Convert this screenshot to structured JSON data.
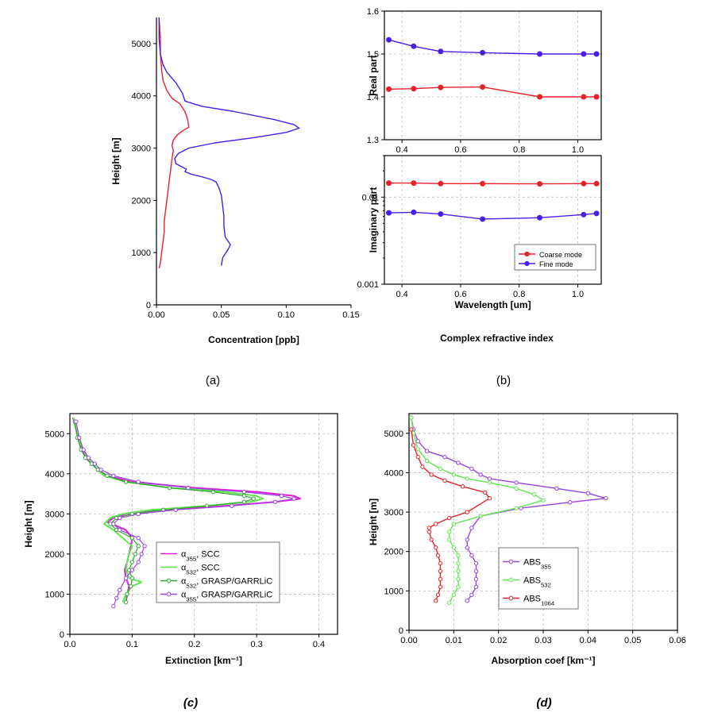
{
  "captions": {
    "a": "(a)",
    "b": "(b)",
    "c": "(c)",
    "d": "(d)"
  },
  "chart_data": [
    {
      "id": "a",
      "type": "line",
      "title": "",
      "xlabel": "Concentration [ppb]",
      "ylabel": "Height [m]",
      "xlim": [
        0,
        0.15
      ],
      "ylim": [
        0,
        5500
      ],
      "xticks": [
        "0.00",
        "0.05",
        "0.10",
        "0.15"
      ],
      "yticks": [
        "0",
        "1000",
        "2000",
        "3000",
        "4000",
        "5000"
      ],
      "grid": false,
      "series": [
        {
          "color": "#e8202a",
          "x": [
            0.002,
            0.003,
            0.004,
            0.005,
            0.006,
            0.006,
            0.007,
            0.008,
            0.009,
            0.01,
            0.011,
            0.012,
            0.013,
            0.012,
            0.013,
            0.016,
            0.02,
            0.025,
            0.024,
            0.022,
            0.018,
            0.012,
            0.008,
            0.005,
            0.004,
            0.003,
            0.003,
            0.002
          ],
          "y": [
            700,
            800,
            1000,
            1200,
            1400,
            1600,
            1800,
            2000,
            2200,
            2400,
            2600,
            2800,
            2950,
            3050,
            3150,
            3250,
            3330,
            3400,
            3550,
            3700,
            3850,
            3950,
            4100,
            4300,
            4500,
            4800,
            5100,
            5500
          ]
        },
        {
          "color": "#4a1ee6",
          "x": [
            0.05,
            0.051,
            0.055,
            0.057,
            0.053,
            0.052,
            0.052,
            0.051,
            0.05,
            0.048,
            0.046,
            0.042,
            0.035,
            0.027,
            0.022,
            0.023,
            0.019,
            0.015,
            0.014,
            0.017,
            0.025,
            0.045,
            0.075,
            0.1,
            0.11,
            0.106,
            0.09,
            0.06,
            0.035,
            0.022,
            0.02,
            0.015,
            0.008,
            0.005,
            0.003,
            0.002,
            0.002
          ],
          "y": [
            750,
            900,
            1050,
            1150,
            1300,
            1500,
            1700,
            1900,
            2100,
            2250,
            2350,
            2400,
            2450,
            2500,
            2550,
            2600,
            2650,
            2700,
            2800,
            2900,
            3000,
            3100,
            3200,
            3300,
            3380,
            3450,
            3550,
            3700,
            3800,
            3900,
            4050,
            4250,
            4450,
            4600,
            4800,
            5100,
            5500
          ]
        }
      ]
    },
    {
      "id": "b_real",
      "type": "line",
      "title": "",
      "xlabel": "",
      "ylabel": "Real part",
      "xlim": [
        0.34,
        1.08
      ],
      "ylim": [
        1.3,
        1.6
      ],
      "xticks": [
        "0.4",
        "0.6",
        "0.8",
        "1.0"
      ],
      "yticks": [
        "1.3",
        "1.4",
        "1.5",
        "1.6"
      ],
      "grid": true,
      "series": [
        {
          "color": "#e8202a",
          "x": [
            0.355,
            0.44,
            0.532,
            0.675,
            0.87,
            1.02,
            1.064
          ],
          "y": [
            1.418,
            1.419,
            1.422,
            1.423,
            1.4,
            1.4,
            1.4
          ]
        },
        {
          "color": "#4a1ee6",
          "x": [
            0.355,
            0.44,
            0.532,
            0.675,
            0.87,
            1.02,
            1.064
          ],
          "y": [
            1.533,
            1.518,
            1.506,
            1.503,
            1.5,
            1.5,
            1.5
          ]
        }
      ]
    },
    {
      "id": "b_imag",
      "type": "line",
      "title": "Complex refractive index",
      "xlabel": "Wavelength [um]",
      "ylabel": "Imaginary part",
      "xlim": [
        0.34,
        1.08
      ],
      "ylim": [
        0.001,
        0.03
      ],
      "yscale": "log",
      "xticks": [
        "0.4",
        "0.6",
        "0.8",
        "1.0"
      ],
      "yticks": [
        "0.001",
        "0.01"
      ],
      "grid": true,
      "legend": "bottom-right",
      "series": [
        {
          "name": "Coarse mode",
          "color": "#e8202a",
          "x": [
            0.355,
            0.44,
            0.532,
            0.675,
            0.87,
            1.02,
            1.064
          ],
          "y": [
            0.0145,
            0.0145,
            0.0143,
            0.0143,
            0.0142,
            0.0143,
            0.0143
          ]
        },
        {
          "name": "Fine mode",
          "color": "#4a1ee6",
          "x": [
            0.355,
            0.44,
            0.532,
            0.675,
            0.87,
            1.02,
            1.064
          ],
          "y": [
            0.0066,
            0.0067,
            0.0064,
            0.0056,
            0.0058,
            0.0063,
            0.0065
          ]
        }
      ]
    },
    {
      "id": "c",
      "type": "line",
      "title": "",
      "xlabel": "Extinction [km⁻¹]",
      "ylabel": "Height [m]",
      "xlim": [
        0,
        0.43
      ],
      "ylim": [
        0,
        5500
      ],
      "xticks": [
        "0.0",
        "0.1",
        "0.2",
        "0.3",
        "0.4"
      ],
      "yticks": [
        "0",
        "1000",
        "2000",
        "3000",
        "4000",
        "5000"
      ],
      "grid": true,
      "legend": "bottom-right",
      "series": [
        {
          "name": "α355, SCC",
          "color": "#e21be0",
          "width": 2,
          "markers": false,
          "x": [
            0.09,
            0.092,
            0.095,
            0.09,
            0.088,
            0.092,
            0.095,
            0.098,
            0.1,
            0.09,
            0.075,
            0.06,
            0.07,
            0.09,
            0.15,
            0.25,
            0.33,
            0.37,
            0.36,
            0.3,
            0.2,
            0.1,
            0.06,
            0.045,
            0.035,
            0.025,
            0.02,
            0.015,
            0.01,
            0.005
          ],
          "y": [
            800,
            1000,
            1200,
            1400,
            1600,
            1800,
            2000,
            2200,
            2400,
            2600,
            2700,
            2800,
            2900,
            3000,
            3100,
            3200,
            3300,
            3380,
            3450,
            3550,
            3650,
            3800,
            3950,
            4100,
            4250,
            4400,
            4600,
            4800,
            5100,
            5400
          ]
        },
        {
          "name": "α532, SCC",
          "color": "#5ee84d",
          "width": 2,
          "markers": false,
          "x": [
            0.085,
            0.09,
            0.1,
            0.115,
            0.095,
            0.09,
            0.092,
            0.095,
            0.1,
            0.085,
            0.07,
            0.055,
            0.065,
            0.085,
            0.13,
            0.22,
            0.29,
            0.31,
            0.3,
            0.25,
            0.16,
            0.09,
            0.055,
            0.045,
            0.035,
            0.028,
            0.022,
            0.016,
            0.01,
            0.006
          ],
          "y": [
            800,
            1000,
            1200,
            1300,
            1400,
            1600,
            1800,
            2000,
            2200,
            2400,
            2600,
            2750,
            2900,
            3000,
            3100,
            3200,
            3300,
            3380,
            3450,
            3550,
            3650,
            3800,
            3950,
            4100,
            4250,
            4400,
            4600,
            4800,
            5100,
            5400
          ]
        },
        {
          "name": "α532, GRASP/GARRLiC",
          "color": "#2ea82e",
          "width": 1.2,
          "markers": true,
          "x": [
            0.09,
            0.092,
            0.098,
            0.1,
            0.095,
            0.1,
            0.105,
            0.11,
            0.1,
            0.075,
            0.065,
            0.075,
            0.1,
            0.15,
            0.22,
            0.28,
            0.295,
            0.28,
            0.23,
            0.16,
            0.09,
            0.06,
            0.045,
            0.035,
            0.025,
            0.018,
            0.012,
            0.008
          ],
          "y": [
            800,
            1000,
            1200,
            1400,
            1600,
            1800,
            2000,
            2200,
            2400,
            2600,
            2750,
            2900,
            3000,
            3100,
            3200,
            3300,
            3380,
            3450,
            3550,
            3650,
            3800,
            3950,
            4100,
            4250,
            4400,
            4600,
            4900,
            5300
          ]
        },
        {
          "name": "α355, GRASP/GARRLiC",
          "color": "#9a43e0",
          "width": 1.2,
          "markers": true,
          "x": [
            0.07,
            0.075,
            0.08,
            0.09,
            0.1,
            0.11,
            0.115,
            0.12,
            0.11,
            0.08,
            0.07,
            0.08,
            0.11,
            0.17,
            0.26,
            0.33,
            0.36,
            0.34,
            0.28,
            0.19,
            0.11,
            0.07,
            0.05,
            0.04,
            0.03,
            0.022,
            0.015,
            0.01
          ],
          "y": [
            700,
            900,
            1100,
            1400,
            1600,
            1800,
            2000,
            2200,
            2400,
            2600,
            2750,
            2900,
            3000,
            3100,
            3200,
            3300,
            3380,
            3450,
            3550,
            3650,
            3800,
            3950,
            4100,
            4250,
            4400,
            4600,
            4900,
            5300
          ]
        }
      ]
    },
    {
      "id": "d",
      "type": "line",
      "title": "",
      "xlabel": "Absorption coef [km⁻¹]",
      "ylabel": "Height [m]",
      "xlim": [
        0,
        0.06
      ],
      "ylim": [
        0,
        5500
      ],
      "xticks": [
        "0.00",
        "0.01",
        "0.02",
        "0.03",
        "0.04",
        "0.05",
        "0.06"
      ],
      "yticks": [
        "0",
        "1000",
        "2000",
        "3000",
        "4000",
        "5000"
      ],
      "grid": true,
      "legend": "bottom-left",
      "series": [
        {
          "name": "ABS355",
          "color": "#9a43e0",
          "x": [
            0.013,
            0.014,
            0.015,
            0.015,
            0.015,
            0.015,
            0.014,
            0.013,
            0.013,
            0.014,
            0.016,
            0.025,
            0.036,
            0.044,
            0.04,
            0.033,
            0.024,
            0.018,
            0.016,
            0.014,
            0.011,
            0.008,
            0.004,
            0.002,
            0.001,
            0.0005
          ],
          "y": [
            750,
            900,
            1100,
            1300,
            1500,
            1700,
            1900,
            2100,
            2300,
            2600,
            2900,
            3100,
            3250,
            3350,
            3480,
            3600,
            3750,
            3850,
            3950,
            4100,
            4250,
            4400,
            4550,
            4800,
            5100,
            5400
          ]
        },
        {
          "name": "ABS532",
          "color": "#5ee84d",
          "x": [
            0.009,
            0.01,
            0.011,
            0.011,
            0.011,
            0.011,
            0.011,
            0.01,
            0.009,
            0.009,
            0.01,
            0.016,
            0.024,
            0.03,
            0.028,
            0.024,
            0.018,
            0.013,
            0.01,
            0.007,
            0.004,
            0.002,
            0.001,
            0.0005
          ],
          "y": [
            700,
            900,
            1100,
            1300,
            1500,
            1700,
            1900,
            2100,
            2300,
            2500,
            2700,
            2900,
            3100,
            3300,
            3450,
            3600,
            3750,
            3850,
            3950,
            4100,
            4300,
            4600,
            5000,
            5400
          ]
        },
        {
          "name": "ABS1064",
          "color": "#e8202a",
          "x": [
            0.006,
            0.0065,
            0.007,
            0.007,
            0.007,
            0.007,
            0.0065,
            0.006,
            0.005,
            0.0045,
            0.0045,
            0.006,
            0.009,
            0.013,
            0.018,
            0.017,
            0.012,
            0.008,
            0.005,
            0.003,
            0.002,
            0.001,
            0.0005
          ],
          "y": [
            750,
            900,
            1100,
            1300,
            1500,
            1700,
            1900,
            2100,
            2300,
            2500,
            2600,
            2700,
            2850,
            3000,
            3350,
            3500,
            3650,
            3800,
            3950,
            4150,
            4400,
            4700,
            5100
          ]
        }
      ]
    }
  ]
}
